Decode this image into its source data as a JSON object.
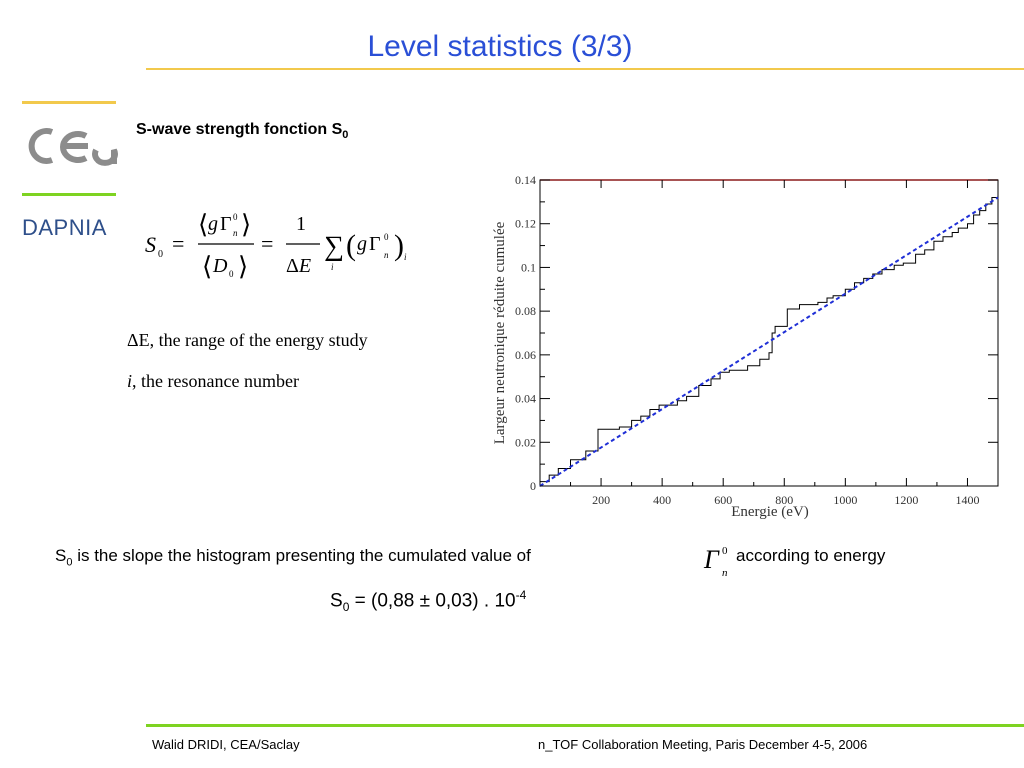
{
  "slide": {
    "title": "Level statistics (3/3)",
    "logo_text": "DAPNIA",
    "subtitle": "S-wave strength fonction S",
    "subtitle_sub": "0",
    "notes": {
      "delta_e": "ΔE, the range of the energy study",
      "i_var": "i",
      "i_rest": ", the resonance number"
    },
    "bottom": {
      "s": "S",
      "s_sub": "0",
      "text": " is the slope the histogram presenting the cumulated value of",
      "text_after": "according to energy"
    },
    "result": {
      "s": "S",
      "s_sub": "0",
      "value": " = (0,88 ± 0,03) . 10",
      "exp": "-4"
    },
    "footer": {
      "left": "Walid DRIDI, CEA/Saclay",
      "right": "n_TOF Collaboration Meeting, Paris December 4-5, 2006"
    },
    "colors": {
      "title": "#2a4fd6",
      "top_rule": "#f2c94c",
      "bottom_rule": "#7ed321",
      "logo_gray": "#8c8c8c",
      "dapnia": "#2e4f8a"
    }
  },
  "chart_data": {
    "type": "line",
    "xlabel": "Energie (eV)",
    "ylabel": "Largeur neutronique réduite cumulée",
    "xlim": [
      0,
      1500
    ],
    "ylim": [
      0,
      0.14
    ],
    "xticks": [
      200,
      400,
      600,
      800,
      1000,
      1200,
      1400
    ],
    "yticks": [
      0,
      0.02,
      0.04,
      0.06,
      0.08,
      0.1,
      0.12,
      0.14
    ],
    "ytick_labels": [
      "0",
      "0.02",
      "0.04",
      "0.06",
      "0.08",
      "0.1",
      "0.12",
      "0.14"
    ],
    "grid": false,
    "series": [
      {
        "style": "histogram-step",
        "color": "#000000",
        "x": [
          0,
          30,
          60,
          100,
          150,
          190,
          260,
          300,
          330,
          360,
          390,
          450,
          480,
          520,
          560,
          590,
          620,
          650,
          680,
          720,
          750,
          760,
          770,
          810,
          850,
          880,
          910,
          940,
          960,
          1000,
          1030,
          1060,
          1090,
          1120,
          1160,
          1190,
          1230,
          1260,
          1290,
          1320,
          1350,
          1370,
          1400,
          1420,
          1440,
          1460,
          1480,
          1500
        ],
        "y": [
          0.002,
          0.005,
          0.008,
          0.012,
          0.016,
          0.026,
          0.027,
          0.03,
          0.032,
          0.035,
          0.037,
          0.039,
          0.041,
          0.046,
          0.049,
          0.052,
          0.053,
          0.053,
          0.055,
          0.058,
          0.061,
          0.07,
          0.073,
          0.081,
          0.083,
          0.083,
          0.084,
          0.086,
          0.087,
          0.09,
          0.093,
          0.095,
          0.097,
          0.099,
          0.101,
          0.102,
          0.106,
          0.108,
          0.112,
          0.114,
          0.116,
          0.118,
          0.12,
          0.124,
          0.126,
          0.129,
          0.132,
          0.136
        ]
      },
      {
        "style": "dashed-fit",
        "color": "#1f2fd6",
        "x": [
          0,
          1500
        ],
        "y": [
          0,
          0.132
        ]
      }
    ]
  }
}
